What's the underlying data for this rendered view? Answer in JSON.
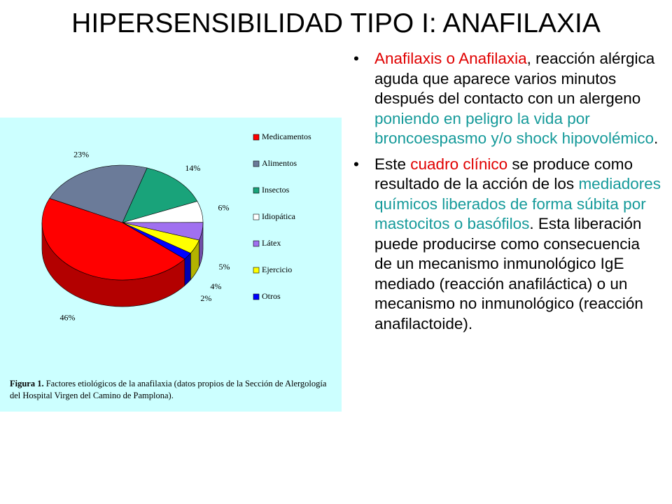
{
  "title": "HIPERSENSIBILIDAD TIPO I: ANAFILAXIA",
  "figure": {
    "chart_data": {
      "type": "pie",
      "categories": [
        "Medicamentos",
        "Alimentos",
        "Insectos",
        "Idiopática",
        "Látex",
        "Ejercicio",
        "Otros"
      ],
      "values": [
        46,
        23,
        14,
        6,
        5,
        4,
        2
      ],
      "value_labels": [
        "46%",
        "23%",
        "14%",
        "6%",
        "5%",
        "4%",
        "2%"
      ],
      "colors": [
        "#ff0000",
        "#6b7b99",
        "#19a37a",
        "#ffffff",
        "#a070f0",
        "#ffff00",
        "#0000ff"
      ]
    },
    "caption": {
      "label": "Figura 1.",
      "text": "Factores etiológicos de la anafilaxia (datos propios de la Sección de Alergología del Hospital Virgen del Camino de Pamplona)."
    }
  },
  "bullets": [
    [
      {
        "text": "Anafilaxis o Anafilaxia",
        "color": "#e00000"
      },
      {
        "text": ", reacción alérgica aguda que aparece varios minutos después del contacto con un alergeno "
      },
      {
        "text": "poniendo en peligro la vida por broncoespasmo y/o shock hipovolémico",
        "color": "#159a9a"
      },
      {
        "text": "."
      }
    ],
    [
      {
        "text": "Este "
      },
      {
        "text": "cuadro clínico",
        "color": "#e00000"
      },
      {
        "text": " se produce como resultado de la acción de los "
      },
      {
        "text": "mediadores químicos liberados de forma súbita por mastocitos o basófilos",
        "color": "#159a9a"
      },
      {
        "text": ". Esta liberación puede producirse como consecuencia de un mecanismo inmunológico IgE mediado (reacción anafiláctica) o un mecanismo no inmunológico (reacción anafilactoide)."
      }
    ]
  ]
}
